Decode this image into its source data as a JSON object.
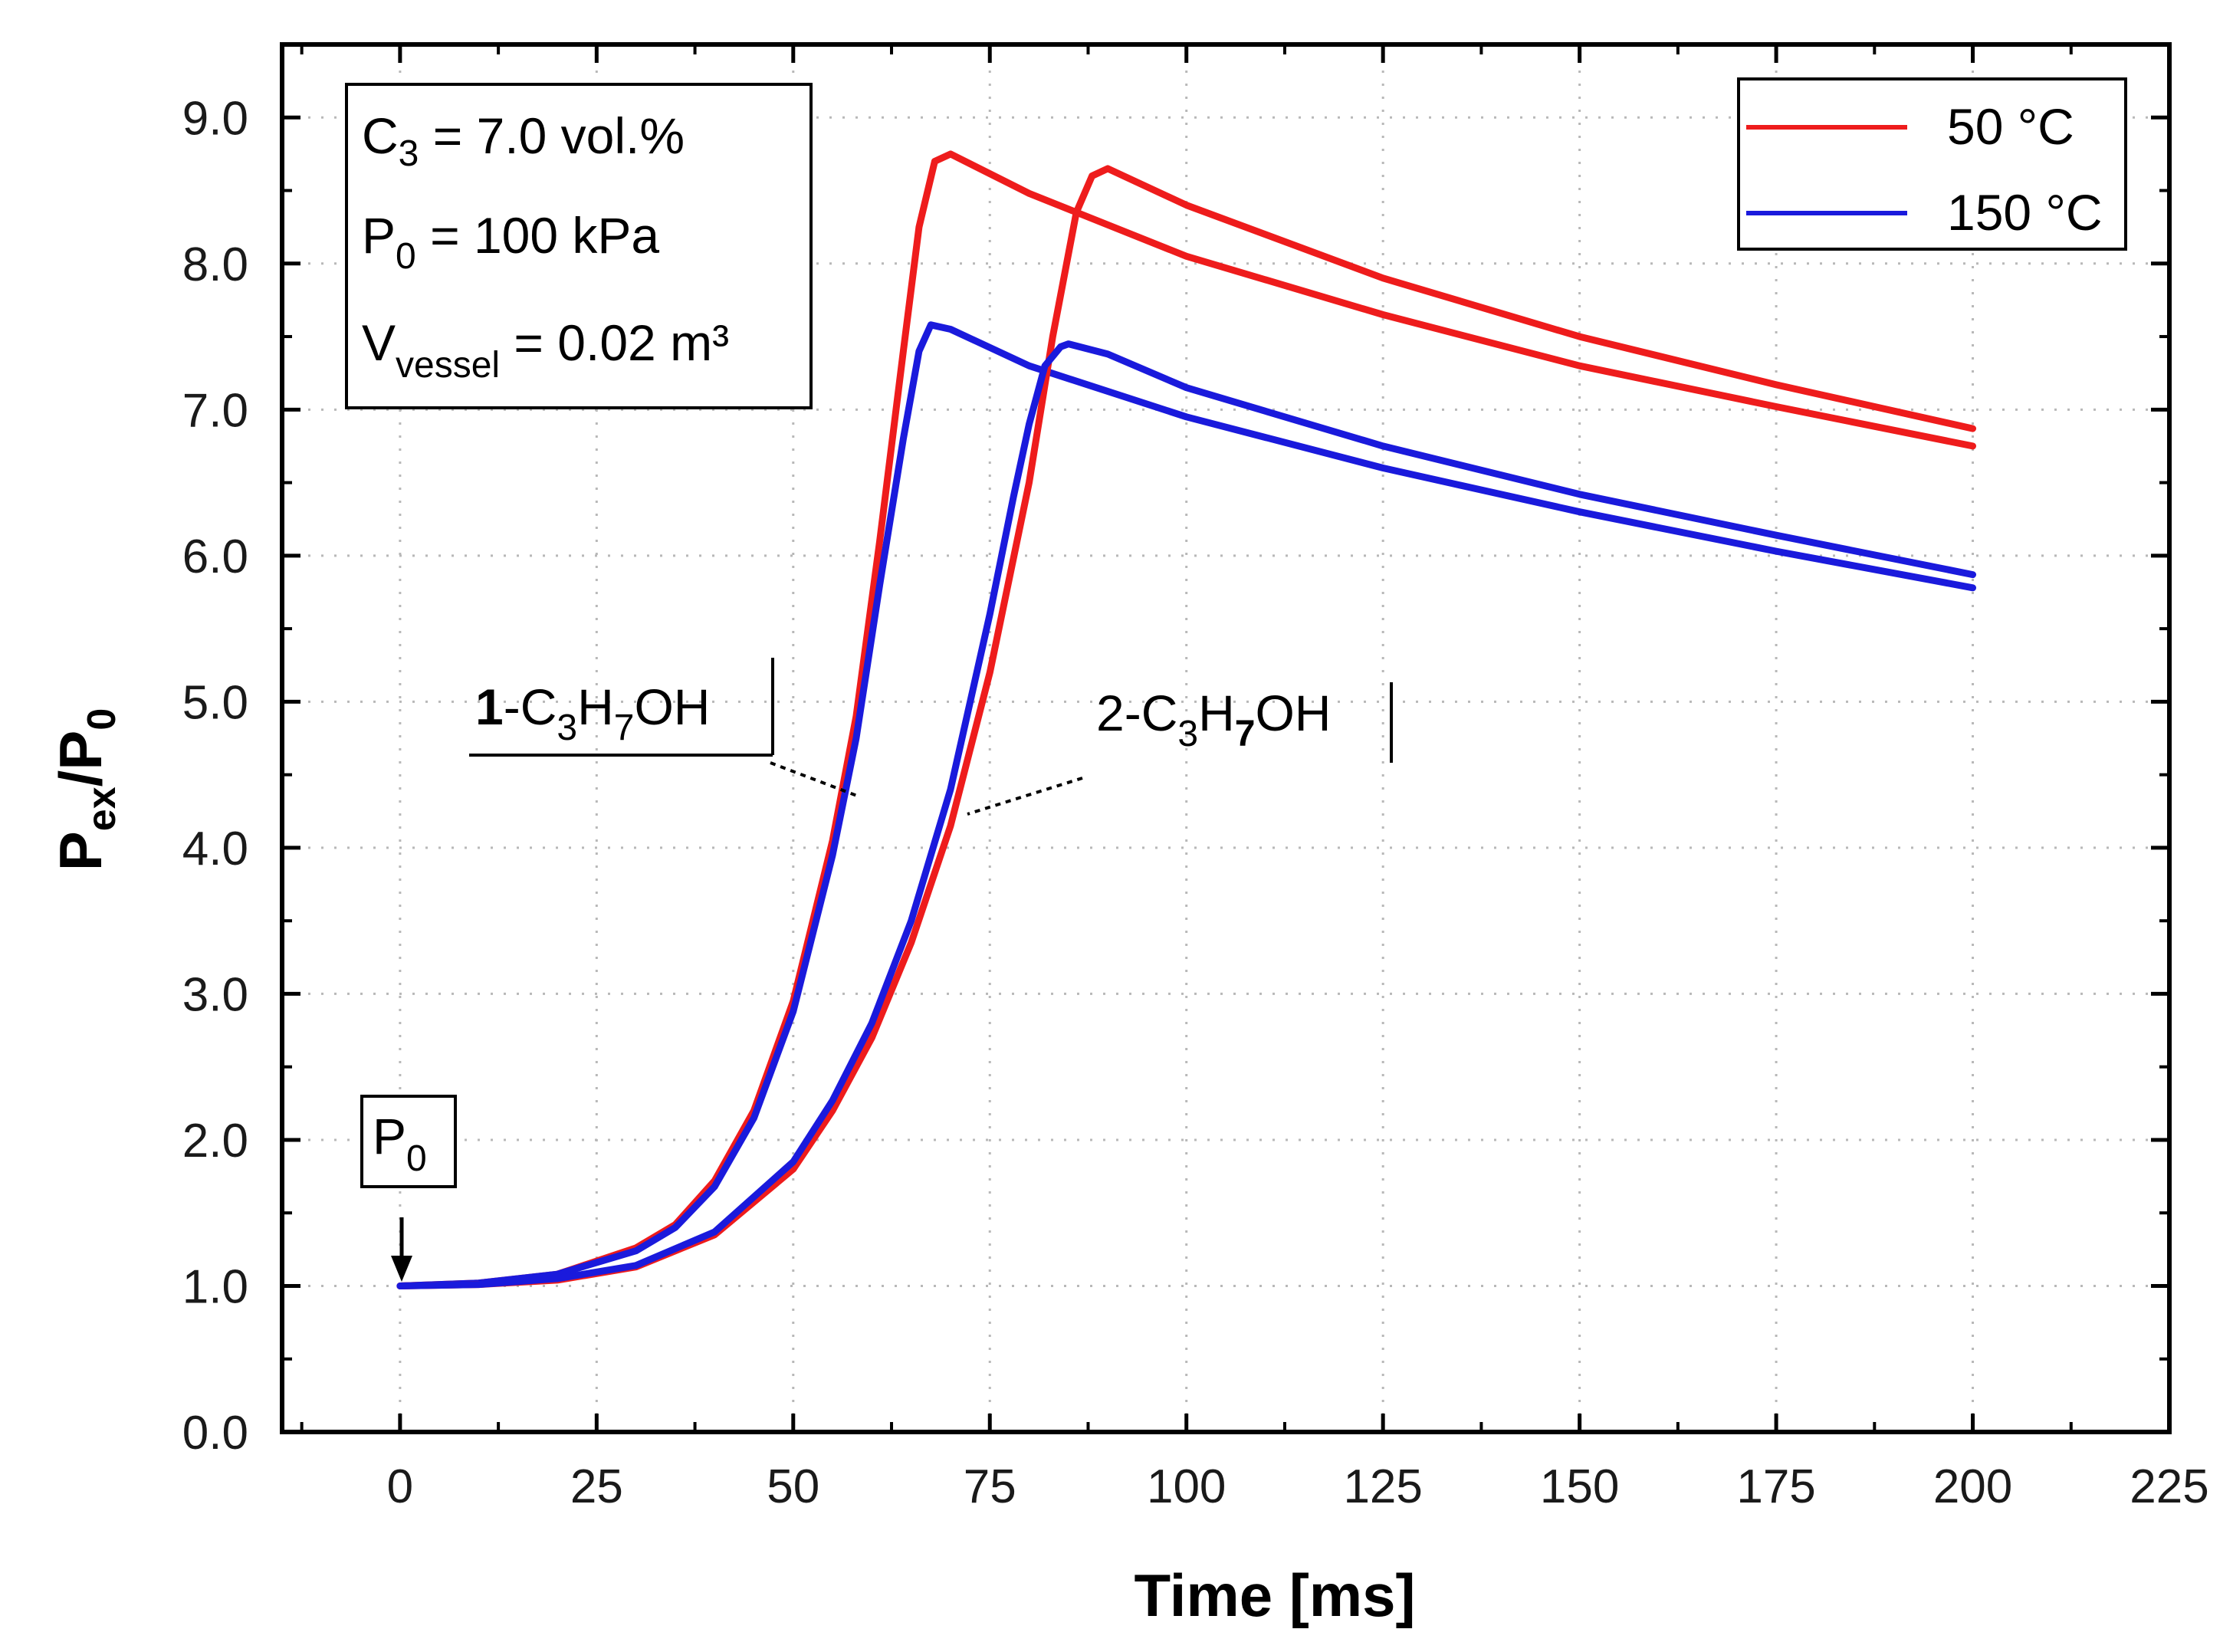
{
  "chart_data": {
    "type": "line",
    "xlabel": "Time [ms]",
    "ylabel": {
      "main": "P",
      "sub1": "ex",
      "sep": "/P",
      "sub2": "0"
    },
    "xlim": [
      -15,
      225
    ],
    "ylim": [
      0,
      9.5
    ],
    "xticks": [
      0,
      25,
      50,
      75,
      100,
      125,
      150,
      175,
      200,
      225
    ],
    "xtick_labels": [
      "0",
      "25",
      "50",
      "75",
      "100",
      "125",
      "150",
      "175",
      "200",
      "225"
    ],
    "yticks": [
      0,
      1,
      2,
      3,
      4,
      5,
      6,
      7,
      8,
      9
    ],
    "ytick_labels": [
      "0.0",
      "1.0",
      "2.0",
      "3.0",
      "4.0",
      "5.0",
      "6.0",
      "7.0",
      "8.0",
      "9.0"
    ],
    "grid": true,
    "legend": {
      "position": "top-right",
      "entries": [
        {
          "label": "50 °C",
          "color": "#ee1c1c"
        },
        {
          "label": "150 °C",
          "color": "#1a1adc"
        }
      ]
    },
    "series": [
      {
        "name": "1-C3H7OH 50 °C",
        "color": "#ee1c1c",
        "x": [
          0,
          10,
          20,
          30,
          35,
          40,
          45,
          50,
          55,
          58,
          61,
          64,
          66,
          68,
          70,
          80,
          100,
          125,
          150,
          175,
          200
        ],
        "y": [
          1.0,
          1.02,
          1.08,
          1.26,
          1.42,
          1.72,
          2.2,
          2.95,
          4.05,
          4.9,
          6.1,
          7.4,
          8.25,
          8.7,
          8.75,
          8.48,
          8.05,
          7.65,
          7.3,
          7.02,
          6.75
        ]
      },
      {
        "name": "1-C3H7OH 150 °C",
        "color": "#1a1adc",
        "x": [
          0,
          10,
          20,
          30,
          35,
          40,
          45,
          50,
          55,
          58,
          61,
          64,
          66,
          67.5,
          70,
          80,
          100,
          125,
          150,
          175,
          200
        ],
        "y": [
          1.0,
          1.02,
          1.08,
          1.24,
          1.4,
          1.68,
          2.15,
          2.88,
          3.95,
          4.75,
          5.8,
          6.8,
          7.4,
          7.58,
          7.55,
          7.3,
          6.95,
          6.6,
          6.3,
          6.03,
          5.78
        ]
      },
      {
        "name": "2-C3H7OH 50 °C",
        "color": "#ee1c1c",
        "x": [
          0,
          10,
          20,
          30,
          40,
          50,
          55,
          60,
          65,
          70,
          75,
          80,
          83,
          86,
          88,
          90,
          100,
          125,
          150,
          175,
          200
        ],
        "y": [
          1.0,
          1.01,
          1.04,
          1.13,
          1.35,
          1.8,
          2.2,
          2.7,
          3.35,
          4.15,
          5.2,
          6.5,
          7.5,
          8.35,
          8.6,
          8.65,
          8.4,
          7.9,
          7.5,
          7.17,
          6.87
        ]
      },
      {
        "name": "2-C3H7OH 150 °C",
        "color": "#1a1adc",
        "x": [
          0,
          10,
          20,
          30,
          40,
          50,
          55,
          60,
          65,
          70,
          75,
          78,
          80,
          82,
          84,
          85,
          90,
          100,
          125,
          150,
          175,
          200
        ],
        "y": [
          1.0,
          1.01,
          1.05,
          1.14,
          1.37,
          1.85,
          2.27,
          2.8,
          3.5,
          4.4,
          5.6,
          6.4,
          6.9,
          7.3,
          7.43,
          7.45,
          7.38,
          7.15,
          6.75,
          6.42,
          6.14,
          5.87
        ]
      }
    ],
    "annotations": {
      "conditions": {
        "line1": {
          "main": "C",
          "sub": "3",
          "rest": " = 7.0 vol.%"
        },
        "line2": {
          "main": "P",
          "sub": "0",
          "rest": " = 100 kPa"
        },
        "line3": {
          "main": "V",
          "sub": "vessel",
          "rest": " = 0.02 m³"
        }
      },
      "p0_label": {
        "main": "P",
        "sub": "0"
      },
      "fuel1": {
        "prefix": "1",
        "main": "-C",
        "sub1": "3",
        "mid": "H",
        "sub2": "7",
        "rest": "OH"
      },
      "fuel2": {
        "prefix": "2",
        "main": "-C",
        "sub1": "3",
        "mid": "H",
        "sub2": "7",
        "rest": "OH"
      }
    }
  }
}
